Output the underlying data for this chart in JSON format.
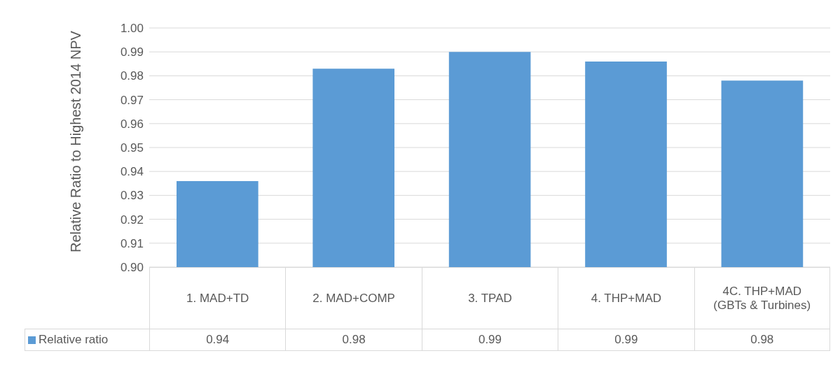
{
  "chart_data": {
    "type": "bar",
    "ylabel": "Relative Ratio to Highest 2014 NPV",
    "categories": [
      "1. MAD+TD",
      "2. MAD+COMP",
      "3. TPAD",
      "4. THP+MAD",
      "4C. THP+MAD (GBTs & Turbines)"
    ],
    "series": [
      {
        "name": "Relative ratio",
        "color": "#5b9bd5",
        "values": [
          0.936,
          0.983,
          0.99,
          0.986,
          0.978
        ],
        "value_labels": [
          "0.94",
          "0.98",
          "0.99",
          "0.99",
          "0.98"
        ]
      }
    ],
    "ylim": [
      0.9,
      1.0
    ],
    "yticks": [
      {
        "value": 0.9,
        "label": "0.90"
      },
      {
        "value": 0.91,
        "label": "0.91"
      },
      {
        "value": 0.92,
        "label": "0.92"
      },
      {
        "value": 0.93,
        "label": "0.93"
      },
      {
        "value": 0.94,
        "label": "0.94"
      },
      {
        "value": 0.95,
        "label": "0.95"
      },
      {
        "value": 0.96,
        "label": "0.96"
      },
      {
        "value": 0.97,
        "label": "0.97"
      },
      {
        "value": 0.98,
        "label": "0.98"
      },
      {
        "value": 0.99,
        "label": "0.99"
      },
      {
        "value": 1.0,
        "label": "1.00"
      }
    ],
    "grid": "y",
    "legend": "bottom"
  }
}
